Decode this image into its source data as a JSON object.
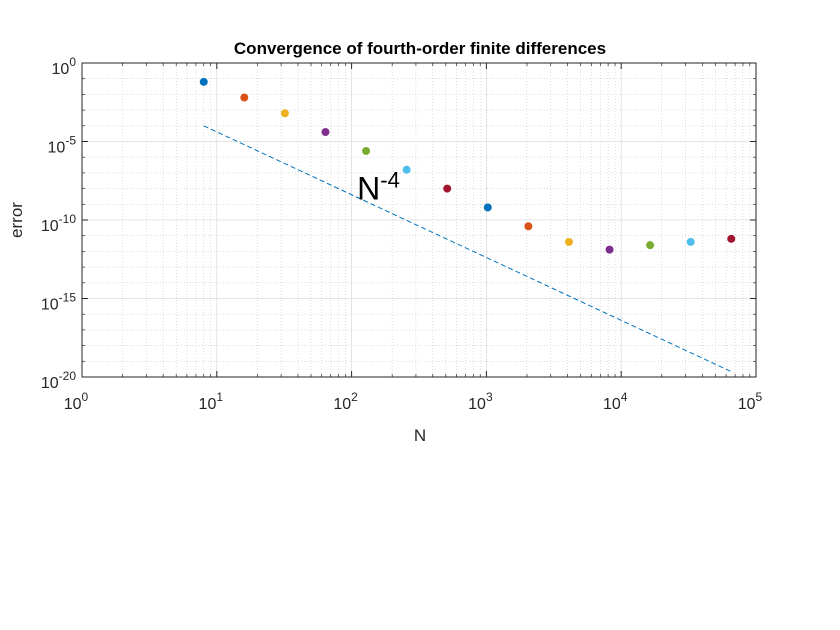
{
  "chart_data": {
    "type": "scatter",
    "title": "Convergence of fourth-order finite differences",
    "xlabel": "N",
    "ylabel": "error",
    "xscale": "log",
    "yscale": "log",
    "xlim": [
      1,
      100000
    ],
    "ylim": [
      1e-20,
      1
    ],
    "grid": true,
    "minor_grid": true,
    "x_ticks": [
      {
        "base": "10",
        "exp": "0"
      },
      {
        "base": "10",
        "exp": "1"
      },
      {
        "base": "10",
        "exp": "2"
      },
      {
        "base": "10",
        "exp": "3"
      },
      {
        "base": "10",
        "exp": "4"
      },
      {
        "base": "10",
        "exp": "5"
      }
    ],
    "y_ticks": [
      {
        "base": "10",
        "exp": "0"
      },
      {
        "base": "10",
        "exp": "-5"
      },
      {
        "base": "10",
        "exp": "-10"
      },
      {
        "base": "10",
        "exp": "-15"
      },
      {
        "base": "10",
        "exp": "-20"
      }
    ],
    "points": [
      {
        "x": 8,
        "y": 0.063,
        "color": "#0072BD"
      },
      {
        "x": 16,
        "y": 0.0063,
        "color": "#D95319"
      },
      {
        "x": 32,
        "y": 0.00063,
        "color": "#EDB120"
      },
      {
        "x": 64,
        "y": 4e-05,
        "color": "#7E2F8E"
      },
      {
        "x": 128,
        "y": 2.5e-06,
        "color": "#77AC30"
      },
      {
        "x": 256,
        "y": 1.6e-07,
        "color": "#4DBEEE"
      },
      {
        "x": 512,
        "y": 1e-08,
        "color": "#A2142F"
      },
      {
        "x": 1024,
        "y": 6.3e-10,
        "color": "#0072BD"
      },
      {
        "x": 2048,
        "y": 4e-11,
        "color": "#D95319"
      },
      {
        "x": 4096,
        "y": 4e-12,
        "color": "#EDB120"
      },
      {
        "x": 8192,
        "y": 1.3e-12,
        "color": "#7E2F8E"
      },
      {
        "x": 16384,
        "y": 2.5e-12,
        "color": "#77AC30"
      },
      {
        "x": 32768,
        "y": 4e-12,
        "color": "#4DBEEE"
      },
      {
        "x": 65536,
        "y": 6.3e-12,
        "color": "#A2142F"
      }
    ],
    "reference_line": {
      "x": [
        8,
        65536
      ],
      "y": [
        0.0001,
        2.2e-20
      ],
      "color": "#0072BD",
      "style": "dashed"
    },
    "annotation": {
      "text": "N",
      "superscript": "-4",
      "x": 110,
      "y": 5e-09
    }
  }
}
